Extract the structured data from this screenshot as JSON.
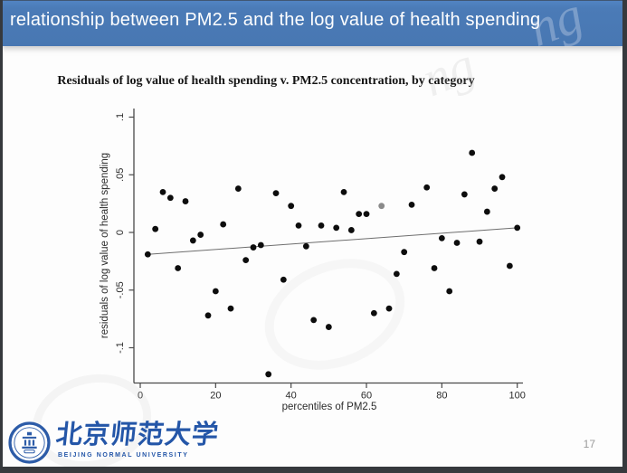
{
  "header": {
    "title": "relationship between PM2.5 and the log value of health spending"
  },
  "slide": {
    "page_number": "17",
    "watermark_fragments": [
      "ng"
    ]
  },
  "logo": {
    "chinese": "北京师范大学",
    "english": "BEIJING NORMAL UNIVERSITY"
  },
  "colors": {
    "header_bg": "#4b7bb7",
    "frame": "#36393d",
    "logo_blue": "#2456a8",
    "page_number": "#9a9a9a",
    "marker": "#0d0d0d",
    "muted_marker": "#8a8a8a",
    "trend_line": "#6e6e6e",
    "axis": "#4a4a4a"
  },
  "chart_data": {
    "type": "scatter",
    "title": "Residuals of log value of health spending v. PM2.5 concentration, by category",
    "xlabel": "percentiles of PM2.5",
    "ylabel": "residuals of log value of health spending",
    "xlim": [
      -2,
      103
    ],
    "ylim": [
      -0.135,
      0.11
    ],
    "grid": false,
    "legend": "none",
    "x_ticks": [
      0,
      20,
      40,
      60,
      80,
      100
    ],
    "x_tick_labels": [
      "0",
      "20",
      "40",
      "60",
      "80",
      "100"
    ],
    "y_ticks": [
      0.1,
      0.05,
      0,
      -0.05,
      -0.1
    ],
    "y_tick_labels": [
      ".1",
      ".05",
      "0",
      "-.05",
      "-.1"
    ],
    "points": [
      [
        2,
        -0.019
      ],
      [
        4,
        0.003
      ],
      [
        6,
        0.035
      ],
      [
        8,
        0.03
      ],
      [
        10,
        -0.031
      ],
      [
        12,
        0.027
      ],
      [
        14,
        -0.007
      ],
      [
        16,
        -0.002
      ],
      [
        18,
        -0.072
      ],
      [
        20,
        -0.051
      ],
      [
        22,
        0.007
      ],
      [
        24,
        -0.066
      ],
      [
        26,
        0.038
      ],
      [
        28,
        -0.024
      ],
      [
        30,
        -0.013
      ],
      [
        32,
        -0.011
      ],
      [
        34,
        -0.123
      ],
      [
        36,
        0.034
      ],
      [
        38,
        -0.041
      ],
      [
        40,
        0.023
      ],
      [
        42,
        0.006
      ],
      [
        44,
        -0.012
      ],
      [
        46,
        -0.076
      ],
      [
        48,
        0.006
      ],
      [
        50,
        -0.082
      ],
      [
        52,
        0.004
      ],
      [
        54,
        0.035
      ],
      [
        56,
        0.002
      ],
      [
        58,
        0.016
      ],
      [
        60,
        0.016
      ],
      [
        62,
        -0.07
      ],
      [
        64,
        0.023
      ],
      [
        66,
        -0.066
      ],
      [
        68,
        -0.036
      ],
      [
        70,
        -0.017
      ],
      [
        72,
        0.024
      ],
      [
        76,
        0.039
      ],
      [
        78,
        -0.031
      ],
      [
        80,
        -0.005
      ],
      [
        82,
        -0.051
      ],
      [
        84,
        -0.009
      ],
      [
        86,
        0.033
      ],
      [
        88,
        0.069
      ],
      [
        90,
        -0.008
      ],
      [
        92,
        0.018
      ],
      [
        94,
        0.038
      ],
      [
        96,
        0.048
      ],
      [
        98,
        -0.029
      ],
      [
        100,
        0.004
      ]
    ],
    "muted_x": [
      64
    ],
    "trend_line": {
      "x": [
        2,
        100
      ],
      "y": [
        -0.019,
        0.004
      ]
    }
  }
}
